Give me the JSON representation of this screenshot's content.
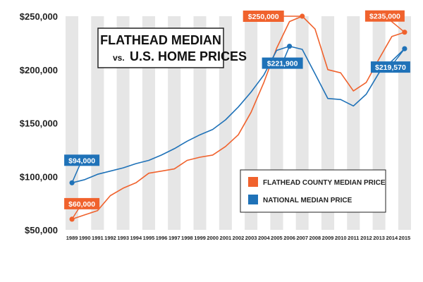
{
  "chart_data": {
    "type": "line",
    "title_line1": "FLATHEAD MEDIAN",
    "title_vs": "vs.",
    "title_line2": "U.S. HOME PRICES",
    "categories": [
      "1989",
      "1990",
      "1991",
      "1992",
      "1993",
      "1994",
      "1995",
      "1996",
      "1997",
      "1998",
      "1999",
      "2000",
      "2001",
      "2002",
      "2003",
      "2004",
      "2005",
      "2006",
      "2007",
      "2008",
      "2009",
      "2010",
      "2011",
      "2012",
      "2013",
      "2014",
      "2015"
    ],
    "ylim": [
      50000,
      250000
    ],
    "yticks": [
      50000,
      100000,
      150000,
      200000,
      250000
    ],
    "ytick_labels": [
      "$50,000",
      "$100,000",
      "$150,000",
      "$200,000",
      "$250,000"
    ],
    "series": [
      {
        "name": "FLATHEAD COUNTY MEDIAN PRICE",
        "color": "#f0622d",
        "values": [
          60000,
          64000,
          68000,
          82000,
          89000,
          94000,
          103000,
          105000,
          107000,
          115000,
          118000,
          120000,
          128000,
          139000,
          160000,
          188000,
          220000,
          245000,
          250000,
          238000,
          200000,
          197000,
          180000,
          188000,
          210000,
          231000,
          235000
        ]
      },
      {
        "name": "NATIONAL MEDIAN PRICE",
        "color": "#1f72b8",
        "values": [
          94000,
          97000,
          102000,
          105000,
          108000,
          112000,
          115000,
          120000,
          126000,
          133000,
          139000,
          144000,
          153000,
          165000,
          179000,
          195000,
          218000,
          221900,
          219000,
          196000,
          173000,
          172000,
          166000,
          177000,
          197000,
          208000,
          219570
        ]
      }
    ],
    "annotations": [
      {
        "text": "$60,000",
        "series": 0,
        "index": 0
      },
      {
        "text": "$94,000",
        "series": 1,
        "index": 0
      },
      {
        "text": "$250,000",
        "series": 0,
        "index": 18
      },
      {
        "text": "$221,900",
        "series": 1,
        "index": 17
      },
      {
        "text": "$235,000",
        "series": 0,
        "index": 26
      },
      {
        "text": "$219,570",
        "series": 1,
        "index": 26
      }
    ],
    "legend_position": "bottom-right",
    "grid": "alternating vertical bands"
  }
}
